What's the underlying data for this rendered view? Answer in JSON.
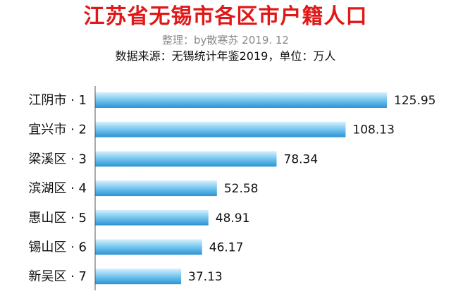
{
  "header": {
    "title": "江苏省无锡市各区市户籍人口",
    "subtitle": "整理：by散寒苏 2019. 12",
    "source": "数据来源：无锡统计年鉴2019，单位：万人"
  },
  "colors": {
    "title": "#e01818",
    "bar_light": "#d6eefb",
    "bar_mid": "#6fc3ef",
    "bar_dark": "#2f97d6",
    "axis": "#555555"
  },
  "chart_data": {
    "type": "bar",
    "orientation": "horizontal",
    "title": "江苏省无锡市各区市户籍人口",
    "categories": [
      "江阴市 · 1",
      "宜兴市 · 2",
      "梁溪区 · 3",
      "滨湖区 · 4",
      "惠山区 · 5",
      "锡山区 · 6",
      "新吴区 · 7"
    ],
    "values": [
      125.95,
      108.13,
      78.34,
      52.58,
      48.91,
      46.17,
      37.13
    ],
    "value_labels": [
      "125.95",
      "108.13",
      "78.34",
      "52.58",
      "48.91",
      "46.17",
      "37.13"
    ],
    "xlim": [
      0,
      125.95
    ],
    "grid": false,
    "legend": "none"
  }
}
